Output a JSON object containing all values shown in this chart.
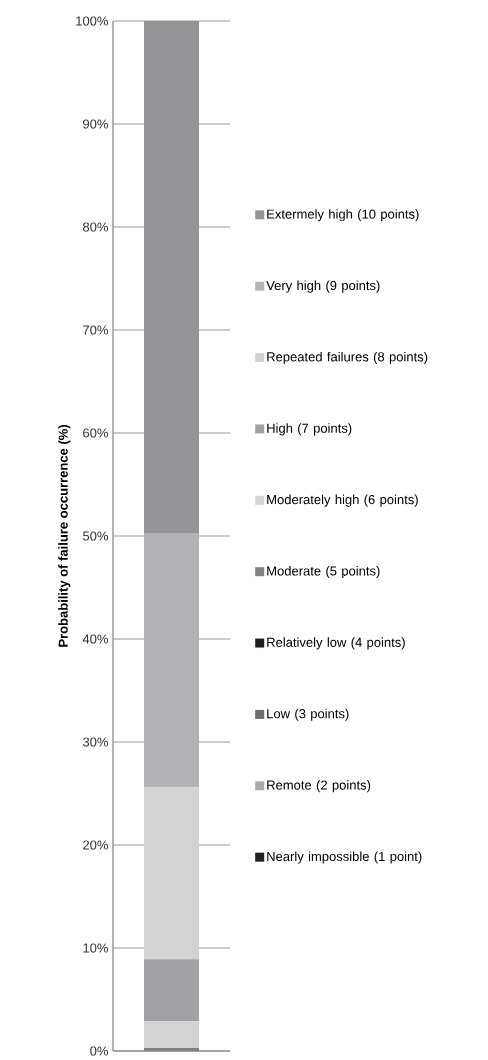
{
  "chart_data": {
    "type": "bar",
    "stacked": true,
    "ylabel": "Probability of failure occurrence (%)",
    "categories": [
      null
    ],
    "series": [
      {
        "name": "Nearly impossible (1 point)",
        "color": "#231f20",
        "values": [
          0
        ]
      },
      {
        "name": "Remote (2 points)",
        "color": "#a7a9ac",
        "values": [
          0
        ]
      },
      {
        "name": "Low (3 points)",
        "color": "#6d6e71",
        "values": [
          0
        ]
      },
      {
        "name": "Relatively low (4 points)",
        "color": "#231f20",
        "values": [
          0
        ]
      },
      {
        "name": "Moderate (5 points)",
        "color": "#808285",
        "values": [
          0.3
        ]
      },
      {
        "name": "Moderately high (6 points)",
        "color": "#d1d3d4",
        "values": [
          2.6
        ]
      },
      {
        "name": "High (7 points)",
        "color": "#a0a1a4",
        "values": [
          6.0
        ]
      },
      {
        "name": "Repeated failures (8 points)",
        "color": "#d1d3d4",
        "values": [
          16.7
        ]
      },
      {
        "name": "Very high (9 points)",
        "color": "#b1b3b6",
        "values": [
          24.7
        ]
      },
      {
        "name": "Extermely high (10 points)",
        "color": "#939598",
        "values": [
          49.7
        ]
      }
    ],
    "ylim": [
      0,
      100
    ],
    "yticks": [
      {
        "value": 0,
        "label": "0%"
      },
      {
        "value": 10,
        "label": "10%"
      },
      {
        "value": 20,
        "label": "20%"
      },
      {
        "value": 30,
        "label": "30%"
      },
      {
        "value": 40,
        "label": "40%"
      },
      {
        "value": 50,
        "label": "50%"
      },
      {
        "value": 60,
        "label": "60%"
      },
      {
        "value": 70,
        "label": "70%"
      },
      {
        "value": 80,
        "label": "80%"
      },
      {
        "value": 90,
        "label": "90%"
      },
      {
        "value": 100,
        "label": "100%"
      }
    ],
    "grid": "y",
    "legend": "right"
  }
}
